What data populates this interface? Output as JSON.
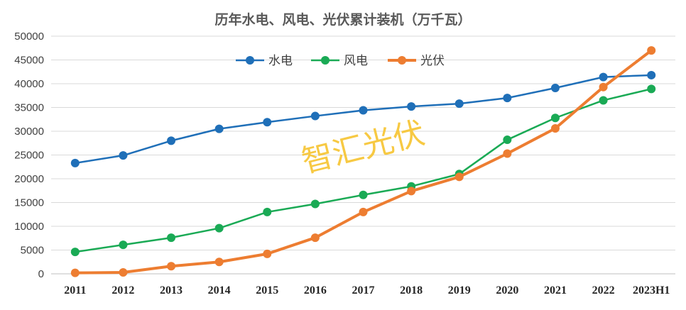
{
  "chart_data": {
    "type": "line",
    "title": "历年水电、风电、光伏累计装机（万千瓦）",
    "categories": [
      "2011",
      "2012",
      "2013",
      "2014",
      "2015",
      "2016",
      "2017",
      "2018",
      "2019",
      "2020",
      "2021",
      "2022",
      "2023H1"
    ],
    "ylim": [
      0,
      50000
    ],
    "yticks": [
      0,
      5000,
      10000,
      15000,
      20000,
      25000,
      30000,
      35000,
      40000,
      45000,
      50000
    ],
    "grid": true,
    "legend_position": "top-center",
    "series": [
      {
        "name": "水电",
        "color": "#1f6fb8",
        "values": [
          23300,
          24900,
          28000,
          30500,
          31900,
          33200,
          34400,
          35200,
          35800,
          37000,
          39100,
          41400,
          41800
        ]
      },
      {
        "name": "风电",
        "color": "#1aaa55",
        "values": [
          4600,
          6100,
          7600,
          9600,
          13000,
          14700,
          16600,
          18400,
          21000,
          28200,
          32800,
          36500,
          38900
        ]
      },
      {
        "name": "光伏",
        "color": "#ed7d31",
        "values": [
          200,
          300,
          1600,
          2500,
          4200,
          7600,
          13000,
          17400,
          20400,
          25300,
          30600,
          39300,
          47000
        ]
      }
    ],
    "watermark": "智汇光伏"
  }
}
